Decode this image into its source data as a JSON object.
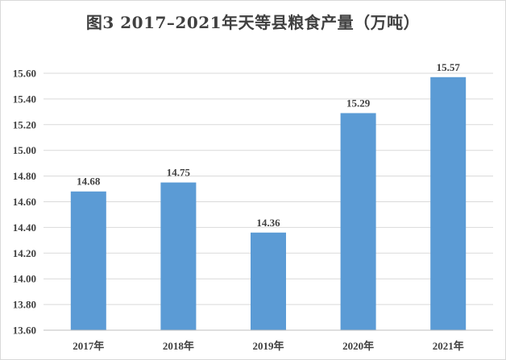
{
  "title": "图3   2017–2021年天等县粮食产量（万吨）",
  "colors": {
    "bar": "#5b9bd5",
    "grid": "#d9d9d9",
    "text": "#404040"
  },
  "chart_data": {
    "type": "bar",
    "title": "图3   2017–2021年天等县粮食产量（万吨）",
    "categories": [
      "2017年",
      "2018年",
      "2019年",
      "2020年",
      "2021年"
    ],
    "series": [
      {
        "values": [
          14.68,
          14.75,
          14.36,
          15.29,
          15.57
        ]
      }
    ],
    "data_labels": [
      "14.68",
      "14.75",
      "14.36",
      "15.29",
      "15.57"
    ],
    "ylim": [
      13.6,
      15.6
    ],
    "yticks": [
      "13.60",
      "13.80",
      "14.00",
      "14.20",
      "14.40",
      "14.60",
      "14.80",
      "15.00",
      "15.20",
      "15.40",
      "15.60"
    ],
    "grid": true,
    "legend": "none",
    "xlabel": "",
    "ylabel": ""
  }
}
